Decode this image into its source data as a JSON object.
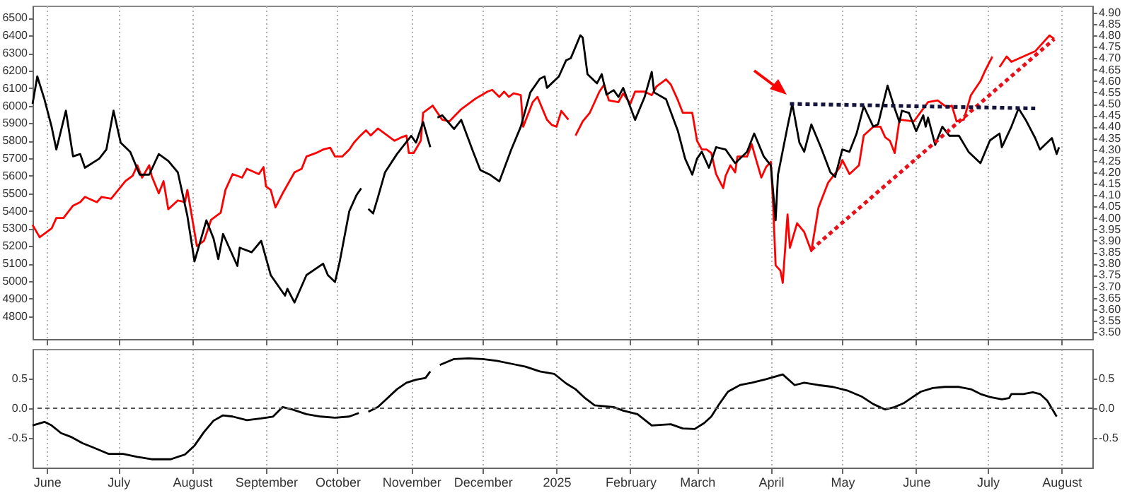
{
  "chart_data": [
    {
      "type": "line",
      "xlim": [
        "2024-05-26",
        "2025-08-14"
      ],
      "ylim": [
        4670,
        6570
      ],
      "y2lim": [
        3.47,
        4.93
      ],
      "xticks": [
        {
          "value": "2024-06-01",
          "label": null
        },
        {
          "value": "2024-07-01",
          "label": null
        },
        {
          "value": "2024-08-01",
          "label": null
        },
        {
          "value": "2024-09-01",
          "label": null
        },
        {
          "value": "2024-10-01",
          "label": null
        },
        {
          "value": "2024-11-01",
          "label": null
        },
        {
          "value": "2024-12-01",
          "label": null
        },
        {
          "value": "2025-01-01",
          "label": null
        },
        {
          "value": "2025-02-01",
          "label": null
        },
        {
          "value": "2025-03-01",
          "label": null
        },
        {
          "value": "2025-04-01",
          "label": null
        },
        {
          "value": "2025-05-01",
          "label": null
        },
        {
          "value": "2025-06-01",
          "label": null
        },
        {
          "value": "2025-07-01",
          "label": null
        },
        {
          "value": "2025-08-01",
          "label": null
        }
      ],
      "yticks": [
        4800,
        4900,
        5000,
        5100,
        5200,
        5300,
        5400,
        5500,
        5600,
        5700,
        5800,
        5900,
        6000,
        6100,
        6200,
        6300,
        6400,
        6500
      ],
      "y2ticks": [
        {
          "value": 3.5,
          "label": "3.50"
        },
        3.55,
        {
          "value": 3.6,
          "label": "3.60"
        },
        3.65,
        {
          "value": 3.7,
          "label": "3.70"
        },
        3.75,
        {
          "value": 3.8,
          "label": "3.80"
        },
        3.85,
        {
          "value": 3.9,
          "label": "3.90"
        },
        3.95,
        {
          "value": 4,
          "label": "4.00"
        },
        4.05,
        {
          "value": 4.1,
          "label": "4.10"
        },
        4.15,
        {
          "value": 4.2,
          "label": "4.20"
        },
        4.25,
        {
          "value": 4.3,
          "label": "4.30"
        },
        4.35,
        {
          "value": 4.4,
          "label": "4.40"
        },
        4.45,
        {
          "value": 4.5,
          "label": "4.50"
        },
        4.55,
        {
          "value": 4.6,
          "label": "4.60"
        },
        4.65,
        {
          "value": 4.7,
          "label": "4.70"
        },
        4.75,
        {
          "value": 4.8,
          "label": "4.80"
        },
        4.85,
        {
          "value": 4.9,
          "label": "4.90"
        }
      ],
      "grid": "x",
      "tick_labels": "y",
      "series": [
        {
          "color": "#ff0000",
          "x": [
            "2024-05-26",
            "2024-05-29",
            "2024-06-01",
            "2024-06-03",
            "2024-06-05",
            "2024-06-08",
            "2024-06-12",
            "2024-06-15",
            "2024-06-17",
            "2024-06-22",
            "2024-06-24",
            "2024-06-28",
            "2024-07-01",
            "2024-07-04",
            "2024-07-07",
            "2024-07-09",
            "2024-07-11",
            "2024-07-14",
            "2024-07-15",
            "2024-07-18",
            "2024-07-20",
            "2024-07-22",
            "2024-07-26",
            "2024-07-29",
            "2024-07-30",
            "2024-08-03",
            "2024-08-06",
            "2024-08-09",
            "2024-08-13",
            "2024-08-15",
            "2024-08-18",
            "2024-08-22",
            "2024-08-24",
            "2024-08-29",
            "2024-08-31",
            "2024-09-01",
            "2024-09-03",
            "2024-09-05",
            "2024-09-08",
            "2024-09-13",
            "2024-09-16",
            "2024-09-18",
            "2024-09-22",
            "2024-09-25",
            "2024-09-28",
            "2024-09-30",
            "2024-10-03",
            "2024-10-06",
            "2024-10-08",
            "2024-10-10",
            "2024-10-13",
            "2024-10-15",
            "2024-10-18",
            "2024-10-20",
            "2024-10-22",
            "2024-10-25",
            "2024-10-28",
            "2024-10-30",
            "2024-10-31",
            "2024-11-02",
            "2024-11-05",
            "2024-11-06",
            "2024-11-10",
            "2024-11-14",
            "2024-11-17",
            "2024-11-22",
            "2024-11-28",
            "2024-12-03",
            "2024-12-05",
            "2024-12-08",
            "2024-12-10",
            "2024-12-12",
            "2024-12-14",
            "2024-12-17",
            "2024-12-18",
            "2024-12-22",
            "2024-12-24",
            "2024-12-28",
            "2024-12-30",
            "2025-01-01",
            "2025-01-03",
            "2025-01-06",
            "2025-01-08",
            "2025-01-09",
            "2025-01-12",
            "2025-01-15",
            "2025-01-19",
            "2025-01-21",
            "2025-01-23",
            "2025-01-27",
            "2025-01-29",
            "2025-02-01",
            "2025-02-03",
            "2025-02-07",
            "2025-02-10",
            "2025-02-12",
            "2025-02-16",
            "2025-02-18",
            "2025-02-21",
            "2025-02-23",
            "2025-02-27",
            "2025-03-01",
            "2025-03-03",
            "2025-03-05",
            "2025-03-07",
            "2025-03-09",
            "2025-03-12",
            "2025-03-13",
            "2025-03-15",
            "2025-03-17",
            "2025-03-18",
            "2025-03-22",
            "2025-03-24",
            "2025-03-25",
            "2025-03-28",
            "2025-03-30",
            "2025-04-01",
            "2025-04-02",
            "2025-04-03",
            "2025-04-05",
            "2025-04-06",
            "2025-04-08",
            "2025-04-09",
            "2025-04-12",
            "2025-04-15",
            "2025-04-18",
            "2025-04-21",
            "2025-04-25",
            "2025-04-30",
            "2025-05-01",
            "2025-05-04",
            "2025-05-08",
            "2025-05-10",
            "2025-05-14",
            "2025-05-17",
            "2025-05-19",
            "2025-05-21",
            "2025-05-23",
            "2025-05-25",
            "2025-05-31",
            "2025-06-06",
            "2025-06-10",
            "2025-06-14",
            "2025-06-16",
            "2025-06-18",
            "2025-06-21",
            "2025-06-24",
            "2025-06-28",
            "2025-06-30",
            "2025-07-03",
            "2025-07-05",
            "2025-07-06",
            "2025-07-09",
            "2025-07-11",
            "2025-07-16",
            "2025-07-21",
            "2025-07-25",
            "2025-07-27",
            "2025-07-29"
          ],
          "values": [
            5320,
            5250,
            5280,
            5300,
            5360,
            5360,
            5430,
            5450,
            5480,
            5450,
            5480,
            5470,
            5520,
            5570,
            5600,
            5660,
            5590,
            5660,
            5600,
            5500,
            5570,
            5410,
            5460,
            5450,
            5520,
            5200,
            5230,
            5350,
            5390,
            5520,
            5610,
            5590,
            5640,
            5610,
            5650,
            5540,
            5520,
            5420,
            5500,
            5620,
            5640,
            5710,
            5730,
            5750,
            5760,
            5710,
            5710,
            5750,
            5790,
            5820,
            5860,
            5830,
            5870,
            5850,
            5830,
            5800,
            5820,
            5830,
            5730,
            5730,
            5800,
            5960,
            6000,
            5920,
            5910,
            5980,
            6040,
            6080,
            6090,
            6050,
            6080,
            6050,
            6070,
            6060,
            5880,
            6020,
            6050,
            5920,
            5890,
            5880,
            5970,
            5920,
            null,
            5830,
            5910,
            5960,
            6080,
            6120,
            6030,
            6020,
            6070,
            6010,
            6080,
            6080,
            6060,
            6110,
            6150,
            6120,
            6030,
            5960,
            5960,
            5800,
            5750,
            5750,
            5730,
            5610,
            5530,
            5600,
            5660,
            5620,
            5710,
            5710,
            5780,
            5730,
            5590,
            5650,
            5680,
            5420,
            5090,
            5060,
            4990,
            5380,
            5190,
            5330,
            5280,
            5170,
            5420,
            5560,
            5650,
            5690,
            5610,
            5660,
            5830,
            5880,
            5880,
            5820,
            5800,
            5730,
            5920,
            5910,
            6020,
            6030,
            5990,
            6000,
            5910,
            5920,
            6060,
            6140,
            6200,
            6280,
            null,
            6220,
            6280,
            6250,
            6280,
            6310,
            6370,
            6400,
            6380
          ]
        },
        {
          "color": "#000000",
          "axis": "y2",
          "x": [
            "2024-05-26",
            "2024-05-28",
            "2024-05-31",
            "2024-06-03",
            "2024-06-05",
            "2024-06-09",
            "2024-06-12",
            "2024-06-15",
            "2024-06-17",
            "2024-06-23",
            "2024-06-26",
            "2024-06-29",
            "2024-07-02",
            "2024-07-06",
            "2024-07-10",
            "2024-07-14",
            "2024-07-18",
            "2024-07-22",
            "2024-07-26",
            "2024-07-30",
            "2024-08-02",
            "2024-08-07",
            "2024-08-10",
            "2024-08-12",
            "2024-08-14",
            "2024-08-20",
            "2024-08-21",
            "2024-08-26",
            "2024-08-30",
            "2024-09-03",
            "2024-09-09",
            "2024-09-10",
            "2024-09-13",
            "2024-09-18",
            "2024-09-25",
            "2024-09-27",
            "2024-09-30",
            "2024-10-02",
            "2024-10-06",
            "2024-10-09",
            "2024-10-11",
            "2024-10-13",
            "2024-10-14",
            "2024-10-16",
            "2024-10-18",
            "2024-10-21",
            "2024-10-26",
            "2024-11-01",
            "2024-11-03",
            "2024-11-06",
            "2024-11-09",
            "2024-11-11",
            "2024-11-12",
            "2024-11-14",
            "2024-11-19",
            "2024-11-22",
            "2024-11-27",
            "2024-11-30",
            "2024-12-04",
            "2024-12-08",
            "2024-12-13",
            "2024-12-17",
            "2024-12-21",
            "2024-12-25",
            "2024-12-27",
            "2024-12-28",
            "2025-01-02",
            "2025-01-05",
            "2025-01-07",
            "2025-01-11",
            "2025-01-12",
            "2025-01-14",
            "2025-01-18",
            "2025-01-20",
            "2025-01-22",
            "2025-01-25",
            "2025-01-27",
            "2025-01-29",
            "2025-02-03",
            "2025-02-07",
            "2025-02-10",
            "2025-02-11",
            "2025-02-16",
            "2025-02-21",
            "2025-02-24",
            "2025-02-27",
            "2025-03-01",
            "2025-03-03",
            "2025-03-06",
            "2025-03-09",
            "2025-03-13",
            "2025-03-17",
            "2025-03-22",
            "2025-03-25",
            "2025-03-29",
            "2025-04-01",
            "2025-04-03",
            "2025-04-04",
            "2025-04-08",
            "2025-04-10",
            "2025-04-13",
            "2025-04-15",
            "2025-04-18",
            "2025-04-22",
            "2025-04-26",
            "2025-04-28",
            "2025-05-01",
            "2025-05-04",
            "2025-05-07",
            "2025-05-10",
            "2025-05-14",
            "2025-05-16",
            "2025-05-20",
            "2025-05-23",
            "2025-05-25",
            "2025-05-26",
            "2025-05-29",
            "2025-06-01",
            "2025-06-04",
            "2025-06-05",
            "2025-06-06",
            "2025-06-09",
            "2025-06-12",
            "2025-06-15",
            "2025-06-19",
            "2025-06-23",
            "2025-06-28",
            "2025-07-02",
            "2025-07-06",
            "2025-07-07",
            "2025-07-11",
            "2025-07-14",
            "2025-07-17",
            "2025-07-21",
            "2025-07-23",
            "2025-07-27",
            "2025-07-28",
            "2025-07-30",
            "2025-07-31"
          ],
          "values": [
            4.5,
            4.62,
            4.52,
            4.4,
            4.3,
            4.47,
            4.27,
            4.28,
            4.22,
            4.26,
            4.3,
            4.47,
            4.33,
            4.29,
            4.19,
            4.19,
            4.28,
            4.25,
            4.2,
            4.01,
            3.81,
            3.99,
            3.91,
            3.82,
            3.93,
            3.79,
            3.87,
            3.85,
            3.9,
            3.75,
            3.66,
            3.69,
            3.63,
            3.75,
            3.8,
            3.75,
            3.72,
            3.81,
            4.03,
            4.1,
            4.13,
            null,
            4.04,
            4.02,
            4.09,
            4.2,
            4.28,
            4.36,
            4.33,
            4.42,
            4.31,
            null,
            4.44,
            4.45,
            4.39,
            4.43,
            4.29,
            4.21,
            4.19,
            4.16,
            4.3,
            4.4,
            4.55,
            4.61,
            4.62,
            4.57,
            4.62,
            4.69,
            4.7,
            4.8,
            4.79,
            4.63,
            4.59,
            4.63,
            4.54,
            4.56,
            4.53,
            4.57,
            4.43,
            4.53,
            4.64,
            4.55,
            4.52,
            4.38,
            4.26,
            4.19,
            4.26,
            4.29,
            4.22,
            4.31,
            4.3,
            4.24,
            4.29,
            4.37,
            4.27,
            4.23,
            3.99,
            4.19,
            4.4,
            4.5,
            4.33,
            4.29,
            4.41,
            4.31,
            4.2,
            4.18,
            4.3,
            4.29,
            4.37,
            4.49,
            4.4,
            4.41,
            4.58,
            4.48,
            4.42,
            4.47,
            4.46,
            4.38,
            4.45,
            4.4,
            4.44,
            4.32,
            4.4,
            4.36,
            4.36,
            4.29,
            4.24,
            4.34,
            4.37,
            4.31,
            4.4,
            4.48,
            4.43,
            4.35,
            4.3,
            4.34,
            4.35,
            4.28,
            4.31
          ]
        },
        {
          "type": "line",
          "color": "#e8101a",
          "line_style": "dotted",
          "x": [
            "2025-04-18",
            "2025-07-29"
          ],
          "values": [
            5180,
            6380
          ]
        },
        {
          "type": "line",
          "color": "#14143c",
          "line_style": "dotted",
          "axis": "y2",
          "x": [
            "2025-04-09",
            "2025-07-21"
          ],
          "values": [
            4.5,
            4.48
          ]
        }
      ]
    },
    {
      "type": "line",
      "xlim": [
        "2024-05-26",
        "2025-08-14"
      ],
      "ylim": [
        -1,
        1
      ],
      "y2lim": [
        -1,
        1
      ],
      "xticks": [
        {
          "value": "2024-06-01",
          "label": "June"
        },
        {
          "value": "2024-07-01",
          "label": "July"
        },
        {
          "value": "2024-08-01",
          "label": "August"
        },
        {
          "value": "2024-09-01",
          "label": "September"
        },
        {
          "value": "2024-10-01",
          "label": "October"
        },
        {
          "value": "2024-11-01",
          "label": "November"
        },
        {
          "value": "2024-12-01",
          "label": "December"
        },
        {
          "value": "2025-01-01",
          "label": "2025"
        },
        {
          "value": "2025-02-01",
          "label": "February"
        },
        {
          "value": "2025-03-01",
          "label": "March"
        },
        {
          "value": "2025-04-01",
          "label": "April"
        },
        {
          "value": "2025-05-01",
          "label": "May"
        },
        {
          "value": "2025-06-01",
          "label": "June"
        },
        {
          "value": "2025-07-01",
          "label": "July"
        },
        {
          "value": "2025-08-01",
          "label": "August"
        }
      ],
      "yticks": [
        -0.5,
        {
          "value": 0,
          "label": "0.0"
        },
        0.5
      ],
      "y2ticks": [
        -0.5,
        {
          "value": 0,
          "label": "0.0"
        },
        0.5
      ],
      "grid": "x",
      "ref_lines": [
        {
          "axis": "y2",
          "value": 0,
          "line_style": "dotted",
          "color": "#555555"
        }
      ],
      "series": [
        {
          "color": "#000000",
          "x": [
            "2024-05-26",
            "2024-05-31",
            "2024-06-03",
            "2024-06-07",
            "2024-06-11",
            "2024-06-16",
            "2024-06-21",
            "2024-06-27",
            "2024-07-03",
            "2024-07-09",
            "2024-07-15",
            "2024-07-23",
            "2024-07-29",
            "2024-08-02",
            "2024-08-06",
            "2024-08-10",
            "2024-08-14",
            "2024-08-18",
            "2024-08-24",
            "2024-08-30",
            "2024-09-04",
            "2024-09-08",
            "2024-09-12",
            "2024-09-18",
            "2024-09-24",
            "2024-09-30",
            "2024-10-06",
            "2024-10-10",
            "2024-10-12",
            "2024-10-14",
            "2024-10-18",
            "2024-10-22",
            "2024-10-26",
            "2024-10-30",
            "2024-11-03",
            "2024-11-07",
            "2024-11-09",
            "2024-11-11",
            "2024-11-13",
            "2024-11-19",
            "2024-11-25",
            "2024-12-01",
            "2024-12-07",
            "2024-12-13",
            "2024-12-19",
            "2024-12-25",
            "2024-12-31",
            "2025-01-05",
            "2025-01-09",
            "2025-01-13",
            "2025-01-17",
            "2025-01-25",
            "2025-01-29",
            "2025-02-04",
            "2025-02-10",
            "2025-02-18",
            "2025-02-23",
            "2025-02-28",
            "2025-03-04",
            "2025-03-07",
            "2025-03-10",
            "2025-03-14",
            "2025-03-19",
            "2025-03-24",
            "2025-03-30",
            "2025-04-06",
            "2025-04-11",
            "2025-04-15",
            "2025-04-21",
            "2025-04-27",
            "2025-05-03",
            "2025-05-09",
            "2025-05-14",
            "2025-05-19",
            "2025-05-23",
            "2025-05-27",
            "2025-05-31",
            "2025-06-03",
            "2025-06-08",
            "2025-06-13",
            "2025-06-19",
            "2025-06-24",
            "2025-06-28",
            "2025-07-02",
            "2025-07-07",
            "2025-07-10",
            "2025-07-11",
            "2025-07-16",
            "2025-07-20",
            "2025-07-23",
            "2025-07-26",
            "2025-07-30"
          ],
          "values": [
            -0.29,
            -0.23,
            -0.29,
            -0.42,
            -0.48,
            -0.59,
            -0.67,
            -0.77,
            -0.77,
            -0.82,
            -0.86,
            -0.86,
            -0.78,
            -0.63,
            -0.4,
            -0.21,
            -0.12,
            -0.14,
            -0.2,
            -0.17,
            -0.14,
            0.02,
            -0.02,
            -0.1,
            -0.14,
            -0.16,
            -0.14,
            -0.08,
            null,
            -0.06,
            0.02,
            0.17,
            0.32,
            0.43,
            0.48,
            0.51,
            0.62,
            null,
            0.73,
            0.83,
            0.84,
            0.83,
            0.8,
            0.75,
            0.7,
            0.62,
            0.58,
            0.42,
            0.32,
            0.17,
            0.05,
            0.02,
            -0.04,
            -0.1,
            -0.29,
            -0.27,
            -0.34,
            -0.35,
            -0.25,
            -0.14,
            0.05,
            0.28,
            0.39,
            0.43,
            0.49,
            0.57,
            0.39,
            0.43,
            0.39,
            0.36,
            0.3,
            0.2,
            0.07,
            -0.02,
            0.02,
            0.09,
            0.2,
            0.28,
            0.34,
            0.36,
            0.36,
            0.32,
            0.24,
            0.19,
            0.15,
            0.17,
            0.24,
            0.24,
            0.27,
            0.24,
            0.13,
            -0.14
          ]
        }
      ]
    }
  ]
}
